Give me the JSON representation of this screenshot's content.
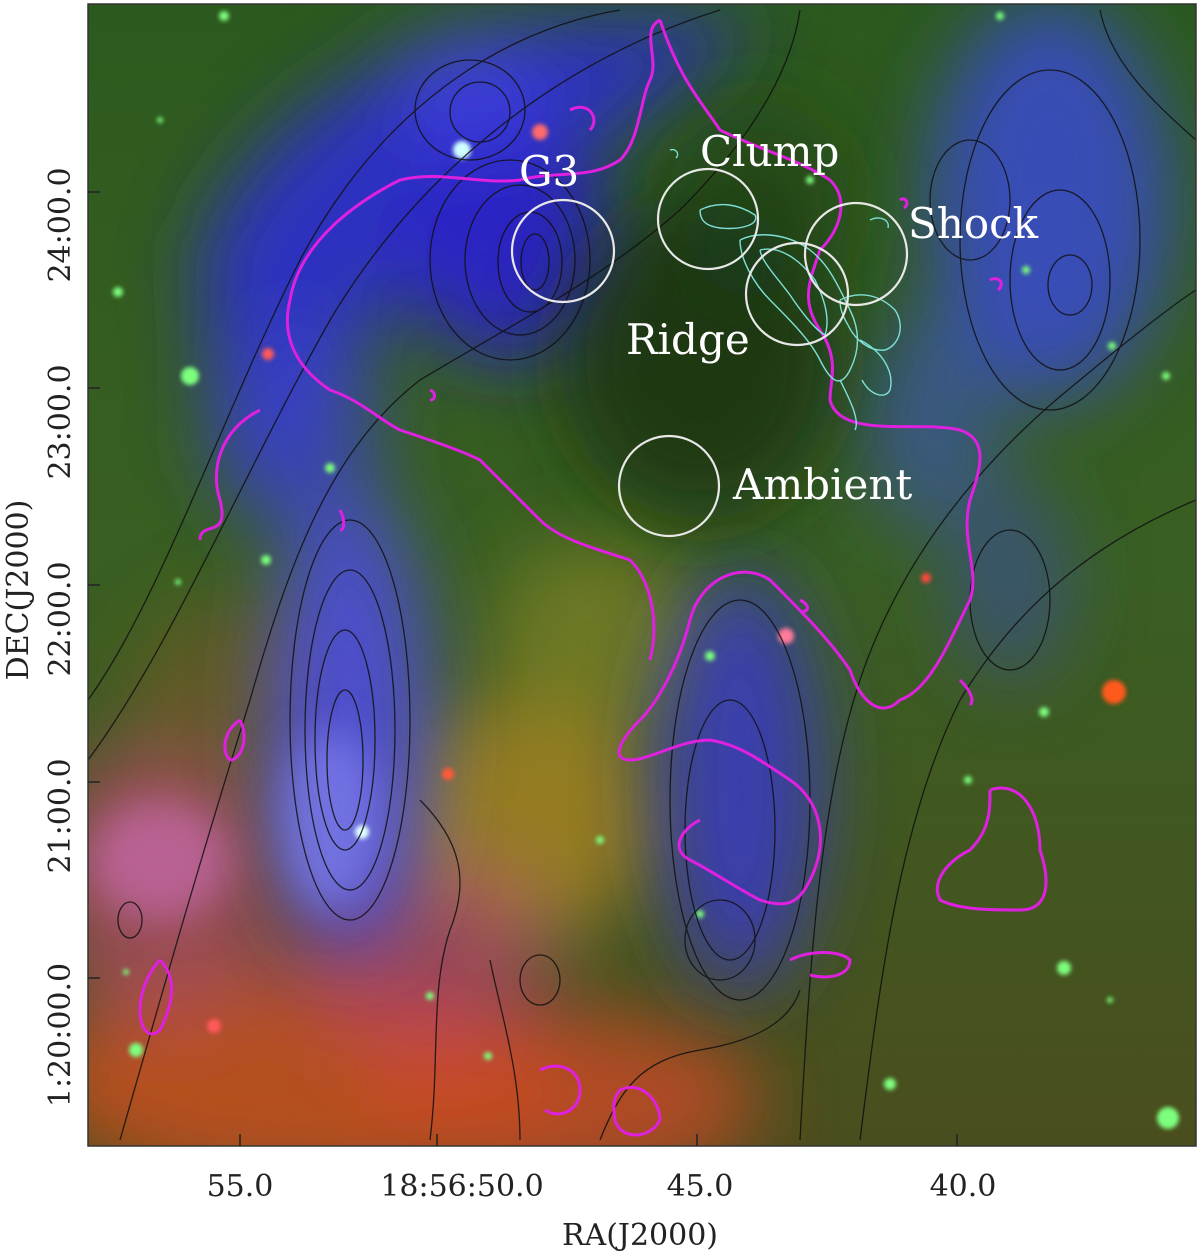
{
  "image": {
    "description_free": true,
    "axes": {
      "x": {
        "label": "RA(J2000)",
        "ticks": [
          "55.0",
          "18:56:50.0",
          "45.0",
          "40.0"
        ]
      },
      "y": {
        "label": "DEC(J2000)",
        "ticks": [
          "24:00.0",
          "23:00.0",
          "22:00.0",
          "21:00.0",
          "1:20:00.0"
        ]
      }
    },
    "regions": [
      "G3",
      "Clump",
      "Shock",
      "Ridge",
      "Ambient"
    ],
    "colors": {
      "contour_black": "#111111",
      "contour_magenta": "#e020e0",
      "contour_cyan": "#7fe0d8",
      "region_circle": "#e8e8e8"
    }
  }
}
